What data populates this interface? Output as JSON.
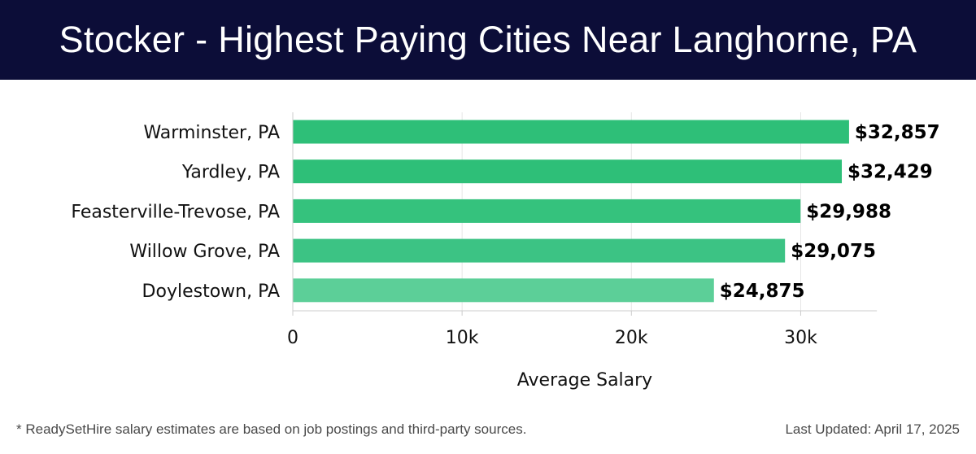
{
  "header": {
    "title": "Stocker - Highest Paying Cities Near Langhorne, PA",
    "background": "#0c0d38"
  },
  "chart_data": {
    "type": "bar",
    "orientation": "horizontal",
    "categories": [
      "Warminster, PA",
      "Yardley, PA",
      "Feasterville-Trevose, PA",
      "Willow Grove, PA",
      "Doylestown, PA"
    ],
    "values": [
      32857,
      32429,
      29988,
      29075,
      24875
    ],
    "value_labels": [
      "$32,857",
      "$32,429",
      "$29,988",
      "$29,075",
      "$24,875"
    ],
    "bar_colors": [
      "#2ebf78",
      "#2ebf78",
      "#35c27d",
      "#3cc384",
      "#5ccf98"
    ],
    "xlabel": "Average Salary",
    "ylabel": "",
    "xlim": [
      0,
      34500
    ],
    "xticks": [
      0,
      10000,
      20000,
      30000
    ],
    "xtick_labels": [
      "0",
      "10k",
      "20k",
      "30k"
    ],
    "grid": "vertical"
  },
  "footer": {
    "note": "* ReadySetHire salary estimates are based on job postings and third-party sources.",
    "updated": "Last Updated: April 17, 2025"
  }
}
